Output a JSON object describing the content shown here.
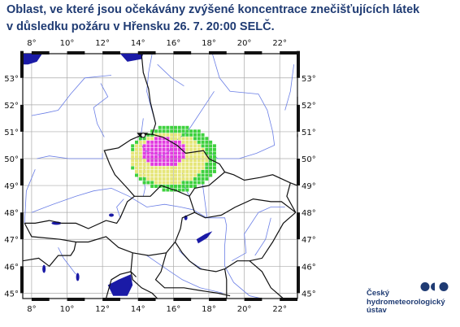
{
  "title": {
    "line1": "Oblast, ve které jsou očekávány zvýšené koncentrace znečišťujících látek",
    "line2": "v důsledku požáru v Hřensku 26. 7. 20:00 SELČ."
  },
  "map": {
    "lon_labels": [
      "8°",
      "10°",
      "12°",
      "14°",
      "16°",
      "18°",
      "20°",
      "22°"
    ],
    "lat_labels": [
      "53°",
      "52°",
      "51°",
      "50°",
      "49°",
      "48°",
      "47°",
      "46°",
      "45°"
    ],
    "extent": {
      "lon_min": 7.5,
      "lon_max": 23.0,
      "lat_min": 44.8,
      "lat_max": 53.9
    },
    "fire_location": {
      "name": "Hřensko",
      "lon": 14.25,
      "lat": 50.87
    },
    "colors": {
      "high": "#e23ce0",
      "medium": "#e6e67a",
      "low": "#3ed13e",
      "borders": "#111111",
      "rivers": "#6b7fe6",
      "water": "#1a1aa6",
      "grid": "#aaaaaa"
    }
  },
  "logo": {
    "text": "Český\nhydrometeorologický\nústav",
    "color": "#1f3b73"
  }
}
